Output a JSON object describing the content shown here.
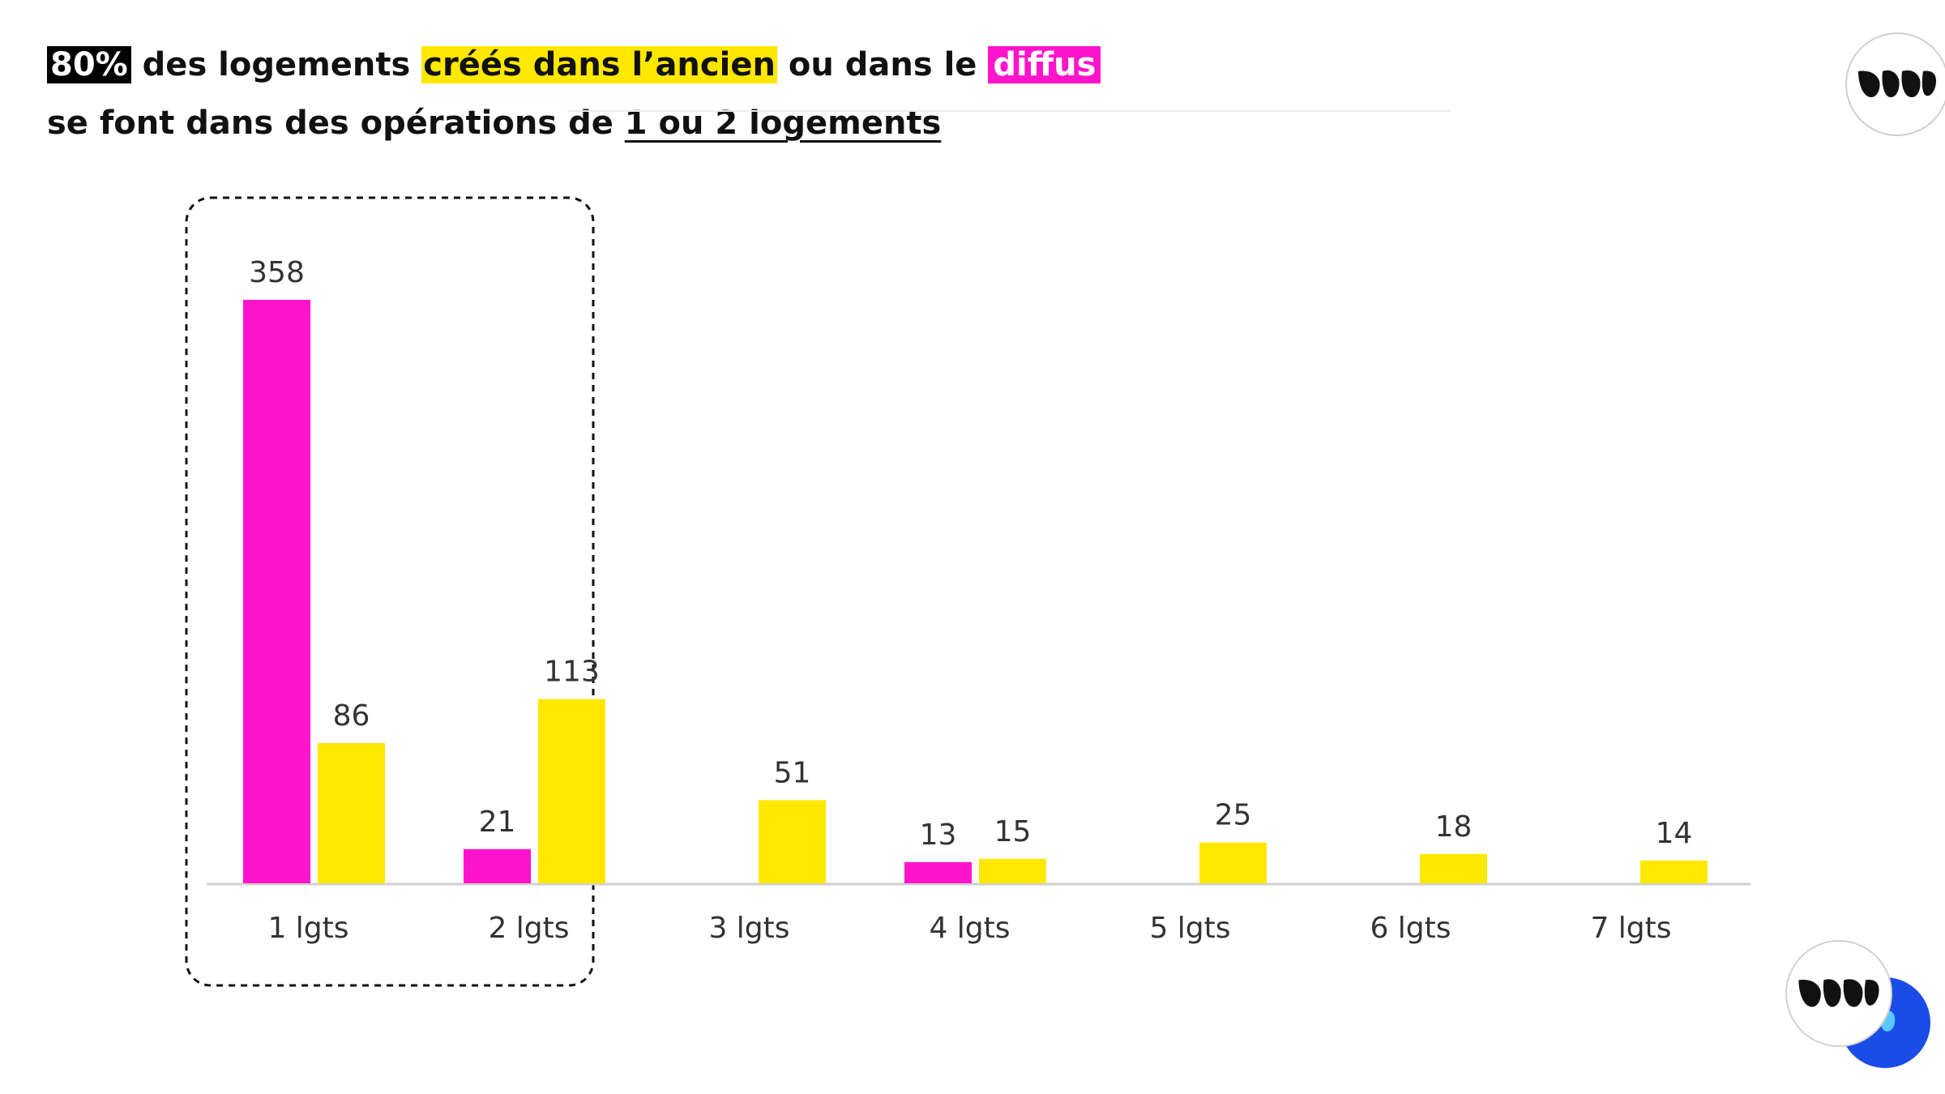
{
  "headline": {
    "line1": {
      "pct": "80%",
      "text_a": " des logements ",
      "highlight_yellow": "créés dans l’ancien",
      "text_b": " ou dans le ",
      "highlight_pink": "diffus"
    },
    "line2": {
      "text": "se font dans des opérations de ",
      "underlined": "1 ou 2 logements"
    }
  },
  "colors": {
    "pink": "#ff14cc",
    "yellow": "#ffe800",
    "label": "#333333",
    "axis": "#d0d0d0",
    "box_stroke": "#111111"
  },
  "icons": {
    "logo_top": "brand-logo-icon",
    "logo_bottom": "brand-logo-badge-icon"
  },
  "chart_data": {
    "type": "bar",
    "title": "",
    "xlabel": "",
    "ylabel": "",
    "categories": [
      "1 lgts",
      "2 lgts",
      "3 lgts",
      "4 lgts",
      "5 lgts",
      "6 lgts",
      "7 lgts"
    ],
    "series": [
      {
        "color": "#ff14cc",
        "values": [
          358,
          21,
          null,
          13,
          null,
          null,
          null
        ]
      },
      {
        "color": "#ffe800",
        "values": [
          86,
          113,
          51,
          15,
          25,
          18,
          14
        ]
      }
    ],
    "ylim": [
      0,
      380
    ],
    "grid": false,
    "legend": "none",
    "highlight_categories": [
      "1 lgts",
      "2 lgts"
    ]
  }
}
